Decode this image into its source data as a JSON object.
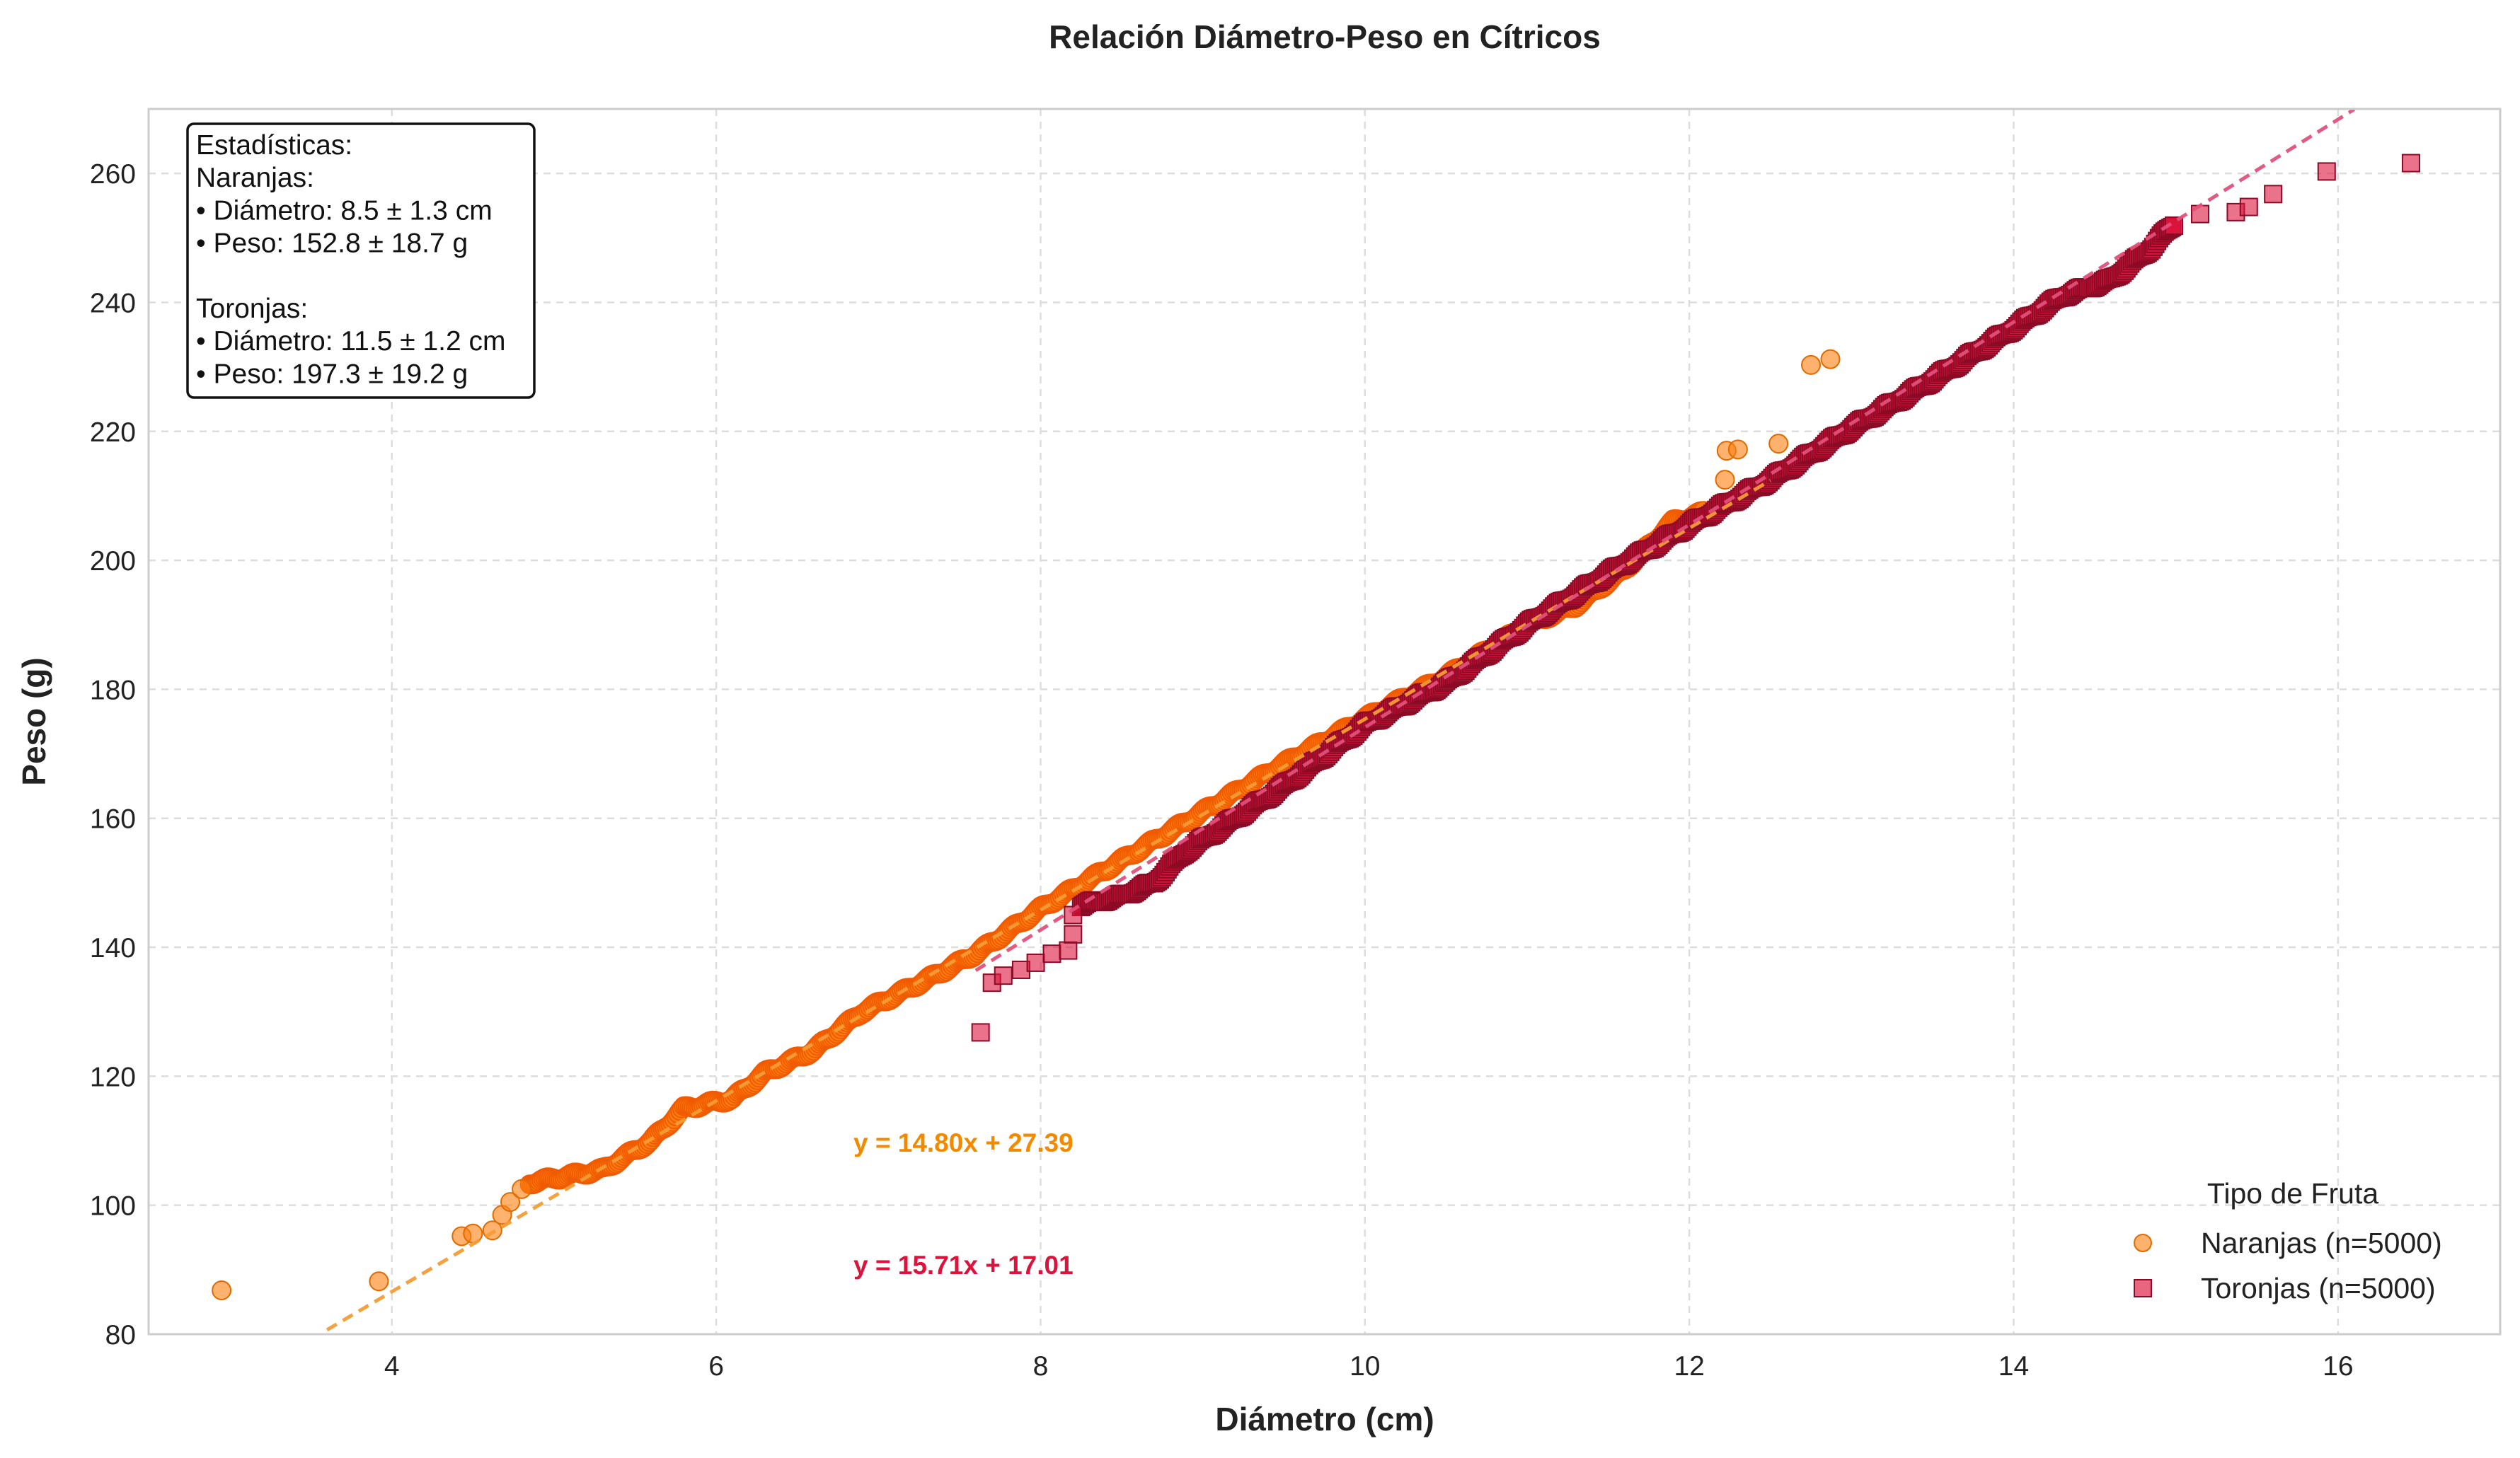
{
  "chart_data": {
    "type": "scatter",
    "title": "Relación Diámetro-Peso en Cítricos",
    "xlabel": "Diámetro (cm)",
    "ylabel": "Peso (g)",
    "xlim": [
      2.5,
      17.0
    ],
    "ylim": [
      80,
      270
    ],
    "xticks": [
      4,
      6,
      8,
      10,
      12,
      14,
      16
    ],
    "yticks": [
      80,
      100,
      120,
      140,
      160,
      180,
      200,
      220,
      240,
      260
    ],
    "grid": true,
    "legend": {
      "title": "Tipo de Fruta",
      "placement": "lower-right"
    },
    "stats_box": {
      "placement": "top-left",
      "lines": [
        "Estadísticas:",
        "Naranjas:",
        "• Diámetro: 8.5 ± 1.3 cm",
        "• Peso: 152.8 ± 18.7 g",
        "",
        "Toronjas:",
        "• Diámetro: 11.5 ± 1.2 cm",
        "• Peso: 197.3 ± 19.2 g"
      ]
    },
    "series": [
      {
        "name": "Naranjas (n=5000)",
        "marker": "circle",
        "color": "#ff7f0e",
        "edge_color": "#e06a00",
        "fit": {
          "slope": 14.8,
          "intercept": 27.39,
          "label": "y = 14.80x + 27.39",
          "color": "#f39c36",
          "x_range": [
            3.6,
            12.5
          ]
        },
        "outliers": [
          [
            2.95,
            86.8
          ],
          [
            3.92,
            88.2
          ],
          [
            4.43,
            95.2
          ],
          [
            4.5,
            95.6
          ],
          [
            4.62,
            96.1
          ],
          [
            4.68,
            98.5
          ],
          [
            4.73,
            100.5
          ],
          [
            4.8,
            102.5
          ],
          [
            12.22,
            212.5
          ],
          [
            12.23,
            217.0
          ],
          [
            12.3,
            217.2
          ],
          [
            12.55,
            218.1
          ],
          [
            12.75,
            230.3
          ],
          [
            12.87,
            231.2
          ]
        ],
        "band": [
          [
            4.85,
            103.5
          ],
          [
            5.3,
            105.5
          ],
          [
            5.6,
            110.0
          ],
          [
            5.8,
            115.0
          ],
          [
            6.1,
            116.5
          ],
          [
            6.3,
            120.5
          ],
          [
            6.6,
            124.0
          ],
          [
            6.9,
            130.0
          ],
          [
            7.3,
            135.0
          ],
          [
            7.6,
            139.0
          ],
          [
            8.0,
            146.0
          ],
          [
            8.5,
            153.5
          ],
          [
            9.0,
            161.0
          ],
          [
            9.5,
            168.5
          ],
          [
            10.0,
            175.5
          ],
          [
            10.5,
            182.0
          ],
          [
            11.0,
            190.0
          ],
          [
            11.3,
            193.0
          ],
          [
            11.6,
            198.5
          ],
          [
            11.9,
            206.0
          ],
          [
            12.1,
            207.5
          ]
        ]
      },
      {
        "name": "Toronjas (n=5000)",
        "marker": "square",
        "color": "#dc143c",
        "edge_color": "#8b0a25",
        "fit": {
          "slope": 15.71,
          "intercept": 17.01,
          "label": "y = 15.71x + 17.01",
          "color": "#e0507a",
          "x_range": [
            7.6,
            16.1
          ]
        },
        "outliers": [
          [
            7.63,
            126.8
          ],
          [
            7.7,
            134.5
          ],
          [
            7.77,
            135.6
          ],
          [
            7.88,
            136.5
          ],
          [
            7.97,
            137.6
          ],
          [
            8.07,
            139.0
          ],
          [
            8.17,
            139.5
          ],
          [
            8.2,
            142.0
          ],
          [
            8.2,
            145.0
          ],
          [
            15.15,
            253.7
          ],
          [
            15.37,
            254.0
          ],
          [
            15.45,
            254.8
          ],
          [
            15.6,
            256.8
          ],
          [
            15.93,
            260.3
          ],
          [
            16.45,
            261.6
          ]
        ],
        "band": [
          [
            8.25,
            146.5
          ],
          [
            8.5,
            148.0
          ],
          [
            8.7,
            150.0
          ],
          [
            8.9,
            155.0
          ],
          [
            9.2,
            160.0
          ],
          [
            9.5,
            165.0
          ],
          [
            10.0,
            174.5
          ],
          [
            10.5,
            181.0
          ],
          [
            11.0,
            190.0
          ],
          [
            11.5,
            198.0
          ],
          [
            12.0,
            205.5
          ],
          [
            12.5,
            212.5
          ],
          [
            13.0,
            220.5
          ],
          [
            13.5,
            228.0
          ],
          [
            14.0,
            236.0
          ],
          [
            14.3,
            241.0
          ],
          [
            14.6,
            243.5
          ],
          [
            14.85,
            248.5
          ],
          [
            15.0,
            252.5
          ]
        ]
      }
    ]
  }
}
